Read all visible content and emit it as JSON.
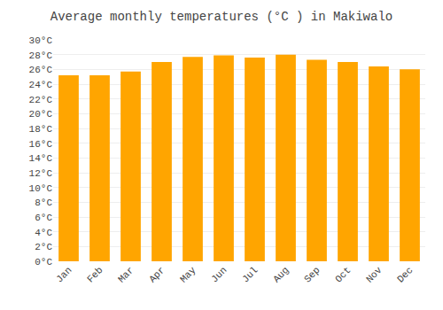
{
  "chart_data": {
    "type": "bar",
    "title": "Average monthly temperatures (°C ) in Makiwalo",
    "categories": [
      "Jan",
      "Feb",
      "Mar",
      "Apr",
      "May",
      "Jun",
      "Jul",
      "Aug",
      "Sep",
      "Oct",
      "Nov",
      "Dec"
    ],
    "values": [
      25.2,
      25.2,
      25.7,
      27.0,
      27.7,
      27.9,
      27.6,
      28.0,
      27.3,
      27.0,
      26.4,
      26.0
    ],
    "color": "#FFA500",
    "ylim": [
      0,
      30
    ],
    "yticks": [
      {
        "value": 0,
        "label": "0°C"
      },
      {
        "value": 2,
        "label": "2°C"
      },
      {
        "value": 4,
        "label": "4°C"
      },
      {
        "value": 6,
        "label": "6°C"
      },
      {
        "value": 8,
        "label": "8°C"
      },
      {
        "value": 10,
        "label": "10°C"
      },
      {
        "value": 12,
        "label": "12°C"
      },
      {
        "value": 14,
        "label": "14°C"
      },
      {
        "value": 16,
        "label": "16°C"
      },
      {
        "value": 18,
        "label": "18°C"
      },
      {
        "value": 20,
        "label": "20°C"
      },
      {
        "value": 22,
        "label": "22°C"
      },
      {
        "value": 24,
        "label": "24°C"
      },
      {
        "value": 26,
        "label": "26°C"
      },
      {
        "value": 28,
        "label": "28°C"
      },
      {
        "value": 30,
        "label": "30°C"
      }
    ],
    "grid": true
  }
}
